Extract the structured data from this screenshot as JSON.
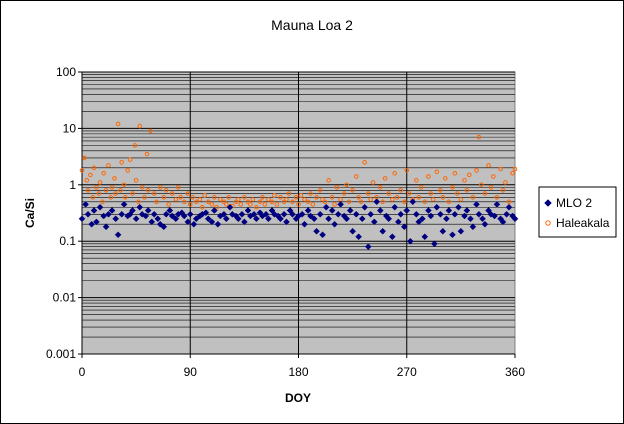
{
  "chart_data": {
    "type": "scatter",
    "title": "Mauna Loa 2",
    "xlabel": "DOY",
    "ylabel": "Ca/Si",
    "xlim": [
      0,
      360
    ],
    "ylim": [
      0.001,
      100
    ],
    "yscale": "log",
    "grid": "major-and-minor horizontal, major vertical",
    "xticks": [
      "0",
      "90",
      "180",
      "270",
      "360"
    ],
    "yticks": [
      "0.001",
      "0.01",
      "0.1",
      "1",
      "10",
      "100"
    ],
    "legend_position": "right",
    "plot_background": "#c0c0c0",
    "series": [
      {
        "name": "MLO 2",
        "marker": "filled-diamond",
        "color": "#000080",
        "note": "approximate representative points",
        "x": [
          0,
          3,
          5,
          8,
          10,
          12,
          15,
          18,
          20,
          22,
          25,
          28,
          30,
          33,
          35,
          38,
          40,
          42,
          45,
          48,
          50,
          53,
          55,
          58,
          60,
          63,
          65,
          68,
          70,
          73,
          75,
          78,
          80,
          83,
          85,
          88,
          90,
          93,
          95,
          98,
          100,
          103,
          105,
          108,
          110,
          113,
          115,
          118,
          120,
          123,
          125,
          128,
          130,
          133,
          135,
          138,
          140,
          143,
          145,
          148,
          150,
          153,
          155,
          158,
          160,
          163,
          165,
          168,
          170,
          173,
          175,
          178,
          180,
          183,
          185,
          188,
          190,
          193,
          195,
          198,
          200,
          203,
          205,
          208,
          210,
          213,
          215,
          218,
          220,
          223,
          225,
          228,
          230,
          233,
          235,
          238,
          240,
          243,
          245,
          248,
          250,
          253,
          255,
          258,
          260,
          263,
          265,
          268,
          270,
          273,
          275,
          278,
          280,
          283,
          285,
          288,
          290,
          293,
          295,
          298,
          300,
          303,
          305,
          308,
          310,
          313,
          315,
          318,
          320,
          323,
          325,
          328,
          330,
          333,
          335,
          338,
          340,
          343,
          345,
          348,
          350,
          353,
          355,
          358,
          360
        ],
        "y": [
          0.25,
          0.45,
          0.3,
          0.2,
          0.35,
          0.22,
          0.4,
          0.28,
          0.18,
          0.3,
          0.35,
          0.25,
          0.13,
          0.3,
          0.45,
          0.28,
          0.3,
          0.35,
          0.25,
          0.4,
          0.3,
          0.28,
          0.35,
          0.22,
          0.3,
          0.25,
          0.2,
          0.18,
          0.3,
          0.35,
          0.28,
          0.25,
          0.3,
          0.32,
          0.28,
          0.22,
          0.3,
          0.2,
          0.25,
          0.28,
          0.3,
          0.32,
          0.25,
          0.22,
          0.35,
          0.2,
          0.28,
          0.3,
          0.25,
          0.4,
          0.3,
          0.28,
          0.25,
          0.3,
          0.22,
          0.35,
          0.28,
          0.3,
          0.25,
          0.32,
          0.28,
          0.3,
          0.25,
          0.35,
          0.3,
          0.28,
          0.25,
          0.3,
          0.22,
          0.35,
          0.3,
          0.25,
          0.28,
          0.3,
          0.2,
          0.35,
          0.28,
          0.25,
          0.15,
          0.3,
          0.13,
          0.4,
          0.25,
          0.35,
          0.2,
          0.3,
          0.45,
          0.28,
          0.25,
          0.35,
          0.15,
          0.3,
          0.12,
          0.25,
          0.4,
          0.08,
          0.3,
          0.22,
          0.5,
          0.35,
          0.15,
          0.28,
          0.25,
          0.12,
          0.4,
          0.22,
          0.3,
          0.18,
          0.35,
          0.1,
          0.5,
          0.3,
          0.22,
          0.25,
          0.12,
          0.35,
          0.28,
          0.09,
          0.4,
          0.3,
          0.15,
          0.25,
          0.35,
          0.13,
          0.3,
          0.4,
          0.15,
          0.28,
          0.35,
          0.25,
          0.18,
          0.45,
          0.3,
          0.25,
          0.2,
          0.35,
          0.3,
          0.28,
          0.45,
          0.25,
          0.22,
          0.3,
          0.4,
          0.28,
          0.25
        ]
      },
      {
        "name": "Haleakala",
        "marker": "open-circle",
        "color": "#ff6600",
        "note": "approximate representative points",
        "x": [
          0,
          2,
          4,
          5,
          7,
          9,
          10,
          12,
          14,
          15,
          17,
          18,
          20,
          22,
          24,
          25,
          27,
          28,
          30,
          32,
          33,
          35,
          36,
          38,
          40,
          42,
          44,
          45,
          47,
          48,
          50,
          52,
          54,
          55,
          57,
          60,
          62,
          65,
          68,
          70,
          72,
          75,
          78,
          80,
          82,
          85,
          88,
          90,
          92,
          95,
          98,
          100,
          102,
          105,
          108,
          110,
          112,
          115,
          118,
          120,
          122,
          125,
          128,
          130,
          132,
          135,
          138,
          140,
          142,
          145,
          148,
          150,
          152,
          155,
          158,
          160,
          162,
          165,
          168,
          170,
          172,
          175,
          178,
          180,
          182,
          185,
          188,
          190,
          192,
          195,
          198,
          200,
          202,
          205,
          208,
          210,
          212,
          215,
          218,
          220,
          222,
          225,
          228,
          230,
          232,
          235,
          238,
          240,
          242,
          245,
          248,
          250,
          252,
          255,
          258,
          260,
          262,
          265,
          268,
          270,
          272,
          275,
          278,
          280,
          282,
          285,
          288,
          290,
          292,
          295,
          298,
          300,
          302,
          305,
          308,
          310,
          312,
          315,
          318,
          320,
          322,
          325,
          328,
          330,
          332,
          335,
          338,
          340,
          342,
          345,
          348,
          350,
          352,
          355,
          358,
          360
        ],
        "y": [
          1.8,
          3.0,
          1.2,
          0.8,
          1.5,
          0.6,
          2.0,
          0.9,
          0.7,
          1.1,
          0.5,
          1.6,
          0.8,
          2.2,
          0.6,
          0.9,
          1.3,
          0.7,
          12.0,
          0.8,
          2.5,
          1.0,
          0.6,
          1.8,
          2.8,
          0.7,
          5.0,
          1.2,
          0.5,
          11.0,
          0.9,
          0.6,
          3.5,
          0.8,
          9.0,
          0.7,
          0.5,
          0.9,
          0.6,
          0.8,
          0.45,
          0.7,
          0.55,
          0.9,
          0.6,
          0.5,
          0.7,
          0.45,
          0.6,
          0.5,
          0.55,
          0.4,
          0.65,
          0.5,
          0.45,
          0.6,
          0.4,
          0.55,
          0.5,
          0.45,
          0.6,
          0.42,
          0.5,
          0.55,
          0.45,
          0.6,
          0.5,
          0.45,
          0.55,
          0.4,
          0.5,
          0.6,
          0.45,
          0.55,
          0.5,
          0.65,
          0.45,
          0.6,
          0.5,
          0.55,
          0.7,
          0.5,
          0.6,
          0.45,
          0.65,
          0.55,
          0.5,
          0.7,
          0.45,
          0.6,
          0.8,
          0.55,
          0.5,
          1.2,
          0.6,
          0.45,
          0.9,
          0.55,
          0.7,
          1.0,
          0.5,
          0.8,
          1.4,
          0.6,
          0.5,
          2.5,
          0.7,
          0.55,
          1.1,
          0.6,
          0.9,
          0.5,
          1.3,
          0.7,
          0.55,
          1.6,
          0.6,
          0.8,
          0.5,
          1.8,
          0.7,
          0.55,
          1.2,
          0.6,
          0.9,
          0.5,
          1.4,
          0.7,
          0.55,
          1.7,
          0.8,
          0.6,
          1.3,
          0.5,
          0.9,
          1.6,
          0.7,
          0.55,
          1.2,
          0.8,
          1.5,
          0.6,
          1.8,
          7.0,
          1.0,
          0.7,
          2.2,
          0.9,
          1.4,
          0.6,
          1.9,
          0.8,
          1.1,
          0.5,
          1.6,
          1.9
        ]
      }
    ]
  }
}
